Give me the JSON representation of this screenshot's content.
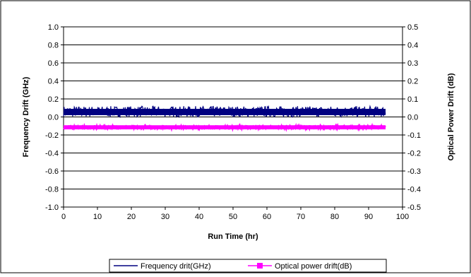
{
  "chart_data": {
    "type": "line",
    "title": "",
    "xlabel": "Run Time (hr)",
    "ylabel_left": "Frequency Drift (GHz)",
    "ylabel_right": "Optical Power Drift (dB)",
    "xlim": [
      0,
      100
    ],
    "ylim_left": [
      -1.0,
      1.0
    ],
    "ylim_right": [
      -0.5,
      0.5
    ],
    "x_ticks": [
      "0",
      "10",
      "20",
      "30",
      "40",
      "50",
      "60",
      "70",
      "80",
      "90",
      "100"
    ],
    "y_left_ticks": [
      "1.0",
      "0.8",
      "0.6",
      "0.4",
      "0.2",
      "0.0",
      "-0.2",
      "-0.4",
      "-0.6",
      "-0.8",
      "-1.0"
    ],
    "y_right_ticks": [
      "0.5",
      "0.4",
      "0.3",
      "0.2",
      "0.1",
      "0.0",
      "-0.1",
      "-0.2",
      "-0.3",
      "-0.4",
      "-0.5"
    ],
    "grid": "horizontal",
    "legend_position": "bottom",
    "series": [
      {
        "name": "Frequency drit(GHz)",
        "axis": "left",
        "color": "#000080",
        "marker": "none",
        "x_range": [
          0,
          95
        ],
        "mean": 0.07,
        "band": [
          0.0,
          0.12
        ]
      },
      {
        "name": "Optical power drift(dB)",
        "axis": "right",
        "color": "#ff00ff",
        "marker": "square",
        "x_range": [
          0,
          95
        ],
        "mean": -0.06,
        "band": [
          -0.065,
          -0.05
        ]
      }
    ]
  }
}
